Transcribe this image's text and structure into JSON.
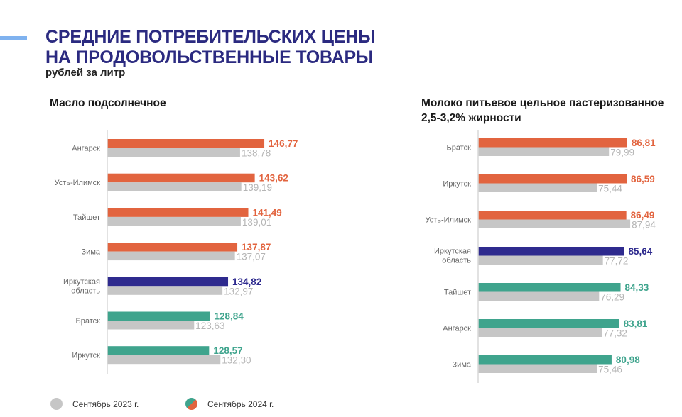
{
  "header": {
    "title_line1": "СРЕДНИЕ ПОТРЕБИТЕЛЬСКИХ ЦЕНЫ",
    "title_line2": "НА ПРОДОВОЛЬСТВЕННЫЕ ТОВАРЫ",
    "subtitle": "рублей за литр"
  },
  "colors": {
    "above": "#e2643f",
    "region": "#2e2a8e",
    "below": "#3fa48d",
    "prev": "#c6c6c6",
    "prev_text": "#b5b5b5",
    "title": "#2b2a80",
    "accent_stripe": "#7fb2ef"
  },
  "legend": {
    "prev_label": "Сентябрь 2023 г.",
    "curr_label": "Сентябрь 2024 г."
  },
  "chart_data": [
    {
      "type": "bar",
      "orientation": "horizontal",
      "title": "Масло подсолнечное",
      "xlim": [
        95,
        150
      ],
      "categories": [
        "Ангарск",
        "Усть-Илимск",
        "Тайшет",
        "Зима",
        "Иркутская область",
        "Братск",
        "Иркутск"
      ],
      "category_lines": [
        [
          "Ангарск"
        ],
        [
          "Усть-Илимск"
        ],
        [
          "Тайшет"
        ],
        [
          "Зима"
        ],
        [
          "Иркутская",
          "область"
        ],
        [
          "Братск"
        ],
        [
          "Иркутск"
        ]
      ],
      "series": [
        {
          "name": "Сентябрь 2024 г.",
          "values": [
            146.77,
            143.62,
            141.49,
            137.87,
            134.82,
            128.84,
            128.57
          ],
          "labels": [
            "146,77",
            "143,62",
            "141,49",
            "137,87",
            "134,82",
            "128,84",
            "128,57"
          ],
          "color_keys": [
            "above",
            "above",
            "above",
            "above",
            "region",
            "below",
            "below"
          ]
        },
        {
          "name": "Сентябрь 2023 г.",
          "values": [
            138.78,
            139.19,
            139.01,
            137.07,
            132.97,
            123.63,
            132.3
          ],
          "labels": [
            "138,78",
            "139,19",
            "139,01",
            "137,07",
            "132,97",
            "123,63",
            "132,30"
          ]
        }
      ]
    },
    {
      "type": "bar",
      "orientation": "horizontal",
      "title_line1": "Молоко питьевое цельное пастеризованное",
      "title_line2": "2,5-3,2% жирности",
      "xlim": [
        31,
        90
      ],
      "categories": [
        "Братск",
        "Иркутск",
        "Усть-Илимск",
        "Иркутская область",
        "Тайшет",
        "Ангарск",
        "Зима"
      ],
      "category_lines": [
        [
          "Братск"
        ],
        [
          "Иркутск"
        ],
        [
          "Усть-Илимск"
        ],
        [
          "Иркутская",
          "область"
        ],
        [
          "Тайшет"
        ],
        [
          "Ангарск"
        ],
        [
          "Зима"
        ]
      ],
      "series": [
        {
          "name": "Сентябрь 2024 г.",
          "values": [
            86.81,
            86.59,
            86.49,
            85.64,
            84.33,
            83.81,
            80.98
          ],
          "labels": [
            "86,81",
            "86,59",
            "86,49",
            "85,64",
            "84,33",
            "83,81",
            "80,98"
          ],
          "color_keys": [
            "above",
            "above",
            "above",
            "region",
            "below",
            "below",
            "below"
          ]
        },
        {
          "name": "Сентябрь 2023 г.",
          "values": [
            79.99,
            75.44,
            87.94,
            77.72,
            76.29,
            77.32,
            75.46
          ],
          "labels": [
            "79,99",
            "75,44",
            "87,94",
            "77,72",
            "76,29",
            "77,32",
            "75,46"
          ]
        }
      ]
    }
  ]
}
